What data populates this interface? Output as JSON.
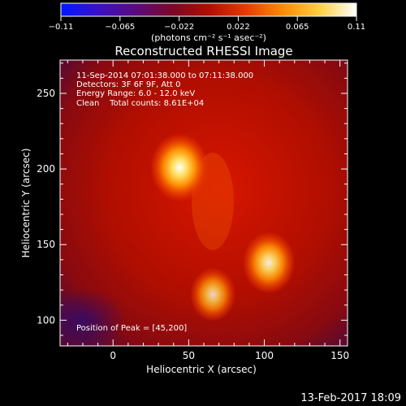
{
  "colorbar": {
    "ticks": [
      "−0.11",
      "−0.065",
      "−0.022",
      "0.022",
      "0.065",
      "0.11"
    ],
    "unit_label": "(photons cm⁻² s⁻¹ asec⁻²)",
    "colors": [
      "#0018ff",
      "#3a10c8",
      "#5a0a80",
      "#7a0828",
      "#b20c00",
      "#e83a00",
      "#ff8a00",
      "#ffd040",
      "#ffffff"
    ]
  },
  "chart_data": {
    "type": "heatmap",
    "title": "Reconstructed RHESSI Image",
    "xlabel": "Heliocentric X (arcsec)",
    "ylabel": "Heliocentric Y (arcsec)",
    "xlim": [
      -35,
      155
    ],
    "ylim": [
      83,
      272
    ],
    "xticks": [
      0,
      50,
      100,
      150
    ],
    "yticks": [
      100,
      150,
      200,
      250
    ],
    "clim": [
      -0.11,
      0.11
    ],
    "info_lines": [
      "11-Sep-2014 07:01:38.000 to 07:11:38.000",
      "Detectors: 3F 6F 9F, Att 0",
      "Energy Range: 6.0 - 12.0 keV",
      "Clean    Total counts: 8.61E+04"
    ],
    "peak_label": "Position of Peak = [45,200]",
    "sources": [
      {
        "x": 44,
        "y": 201,
        "intensity": 0.11
      },
      {
        "x": 103,
        "y": 138,
        "intensity": 0.09
      },
      {
        "x": 66,
        "y": 117,
        "intensity": 0.065
      }
    ]
  },
  "timestamp": "13-Feb-2017 18:09"
}
